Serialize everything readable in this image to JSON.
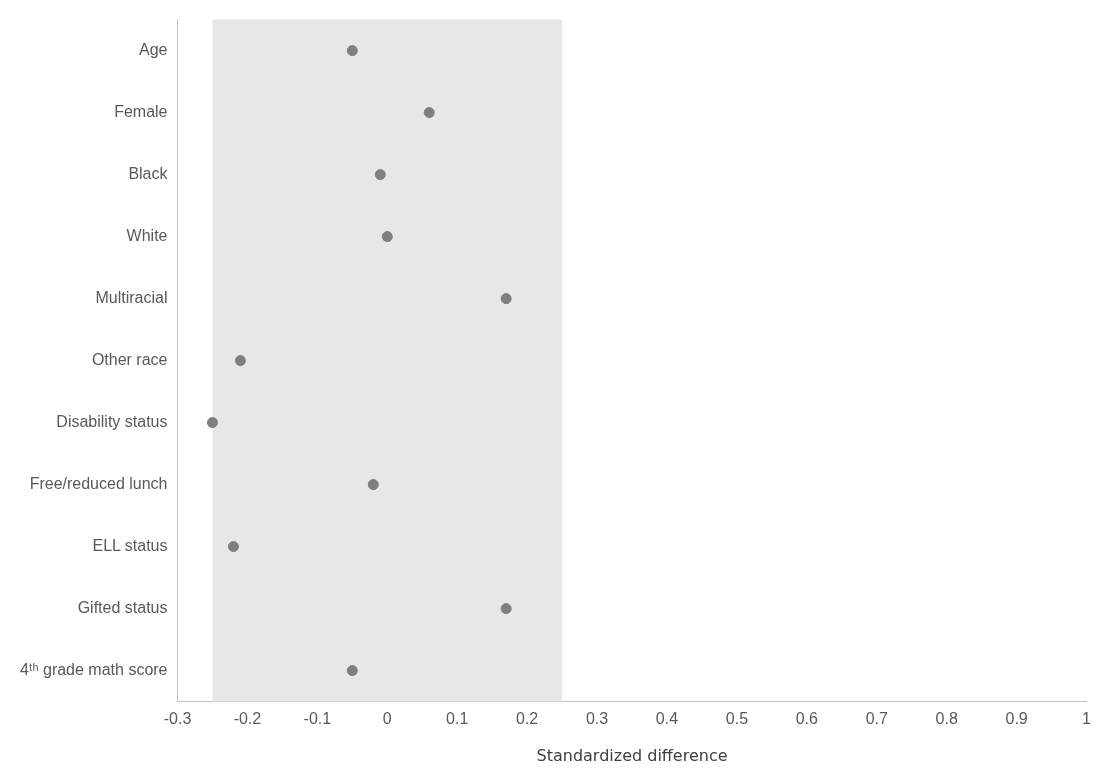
{
  "chart_data": {
    "type": "scatter",
    "orientation": "horizontal",
    "xlabel": "Standardized difference",
    "categories": [
      "Age",
      "Female",
      "Black",
      "White",
      "Multiracial",
      "Other race",
      "Disability status",
      "Free/reduced lunch",
      "ELL status",
      "Gifted status",
      "4ᵗʰ grade math score"
    ],
    "values": [
      -0.05,
      0.06,
      -0.01,
      0.0,
      0.17,
      -0.21,
      -0.25,
      -0.02,
      -0.22,
      0.17,
      -0.05
    ],
    "color": "#7f7f7f",
    "marker": "circle",
    "xlim": [
      -0.3,
      1
    ],
    "xticks": [
      -0.3,
      -0.2,
      -0.1,
      0,
      0.1,
      0.2,
      0.3,
      0.4,
      0.5,
      0.6,
      0.7,
      0.8,
      0.9,
      1
    ],
    "bands": [
      {
        "axis": "x",
        "from": -0.25,
        "to": 0.25,
        "color": "#e7e7e7"
      }
    ]
  }
}
